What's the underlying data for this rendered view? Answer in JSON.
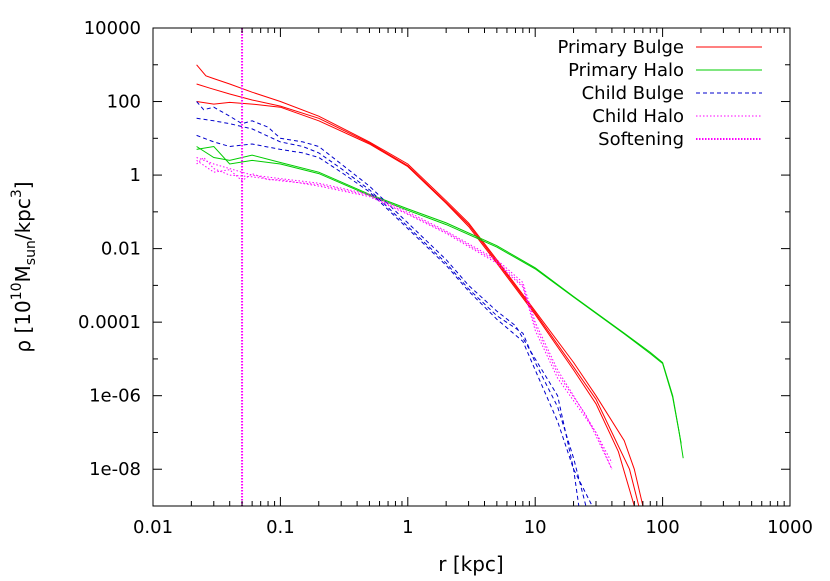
{
  "chart_data": {
    "type": "line",
    "xlabel": "r [kpc]",
    "ylabel": {
      "prefix": "ρ [10",
      "exp10": "10",
      "m": "M",
      "msub": "sun",
      "slash": "/kpc",
      "exp3": "3",
      "suffix": "]"
    },
    "xscale": "log",
    "yscale": "log",
    "xlim": [
      0.01,
      1000
    ],
    "ylim": [
      1e-09,
      10000
    ],
    "xticks": [
      0.01,
      0.1,
      1,
      10,
      100,
      1000
    ],
    "xtick_labels": [
      "0.01",
      "0.1",
      "1",
      "10",
      "100",
      "1000"
    ],
    "yticks": [
      10000,
      100,
      1,
      0.01,
      0.0001,
      1e-06,
      1e-08
    ],
    "ytick_labels": [
      "10000",
      "100",
      "1",
      "0.01",
      "0.0001",
      "1e-06",
      "1e-08"
    ],
    "grid": false,
    "legend_position": "top-right",
    "series": [
      {
        "name": "Primary Bulge",
        "color": "#ff0000",
        "dash": "solid",
        "lines": [
          [
            [
              0.022,
              1000
            ],
            [
              0.026,
              500
            ],
            [
              0.03,
              420
            ],
            [
              0.04,
              300
            ],
            [
              0.06,
              180
            ],
            [
              0.1,
              100
            ],
            [
              0.2,
              40
            ],
            [
              0.5,
              8
            ],
            [
              1,
              2
            ],
            [
              2,
              0.2
            ],
            [
              3,
              0.05
            ],
            [
              5,
              0.005
            ],
            [
              10,
              0.0002
            ],
            [
              20,
              8e-06
            ],
            [
              30,
              1e-06
            ],
            [
              50,
              6e-08
            ],
            [
              60,
              1e-08
            ],
            [
              70,
              1e-09
            ]
          ],
          [
            [
              0.022,
              300
            ],
            [
              0.028,
              230
            ],
            [
              0.04,
              160
            ],
            [
              0.06,
              110
            ],
            [
              0.1,
              75
            ],
            [
              0.2,
              35
            ],
            [
              0.5,
              7.5
            ],
            [
              1,
              1.8
            ],
            [
              2,
              0.18
            ],
            [
              3,
              0.045
            ],
            [
              5,
              0.0045
            ],
            [
              10,
              0.00018
            ],
            [
              20,
              6e-06
            ],
            [
              30,
              8e-07
            ],
            [
              40,
              1e-07
            ],
            [
              55,
              1e-08
            ],
            [
              65,
              1e-09
            ]
          ],
          [
            [
              0.022,
              100
            ],
            [
              0.03,
              85
            ],
            [
              0.04,
              95
            ],
            [
              0.06,
              85
            ],
            [
              0.1,
              70
            ],
            [
              0.2,
              30
            ],
            [
              0.5,
              7
            ],
            [
              1,
              1.7
            ],
            [
              2,
              0.17
            ],
            [
              3,
              0.04
            ],
            [
              5,
              0.004
            ],
            [
              10,
              0.00016
            ],
            [
              20,
              5e-06
            ],
            [
              30,
              6e-07
            ],
            [
              45,
              3e-08
            ],
            [
              60,
              1e-09
            ]
          ]
        ]
      },
      {
        "name": "Primary Halo",
        "color": "#00cc00",
        "dash": "solid",
        "lines": [
          [
            [
              0.022,
              6
            ],
            [
              0.03,
              3
            ],
            [
              0.04,
              2.5
            ],
            [
              0.06,
              3.5
            ],
            [
              0.1,
              2.2
            ],
            [
              0.2,
              1.2
            ],
            [
              0.5,
              0.3
            ],
            [
              1,
              0.12
            ],
            [
              2,
              0.05
            ],
            [
              5,
              0.012
            ],
            [
              10,
              0.003
            ],
            [
              20,
              0.0005
            ],
            [
              50,
              5e-05
            ],
            [
              80,
              1.5e-05
            ],
            [
              100,
              8e-06
            ],
            [
              120,
              1e-06
            ],
            [
              135,
              1e-07
            ],
            [
              145,
              2e-08
            ]
          ],
          [
            [
              0.022,
              5
            ],
            [
              0.03,
              6
            ],
            [
              0.04,
              2
            ],
            [
              0.06,
              2.5
            ],
            [
              0.1,
              2
            ],
            [
              0.2,
              1.1
            ],
            [
              0.5,
              0.28
            ],
            [
              1,
              0.11
            ],
            [
              2,
              0.045
            ],
            [
              5,
              0.011
            ],
            [
              10,
              0.0028
            ],
            [
              20,
              0.00048
            ],
            [
              50,
              4.8e-05
            ],
            [
              80,
              1.4e-05
            ],
            [
              100,
              7.5e-06
            ],
            [
              120,
              9e-07
            ],
            [
              140,
              5e-08
            ]
          ]
        ]
      },
      {
        "name": "Child Bulge",
        "color": "#0000cc",
        "dash": "dashed",
        "lines": [
          [
            [
              0.022,
              100
            ],
            [
              0.025,
              60
            ],
            [
              0.03,
              70
            ],
            [
              0.04,
              40
            ],
            [
              0.05,
              25
            ],
            [
              0.06,
              30
            ],
            [
              0.08,
              20
            ],
            [
              0.1,
              10
            ],
            [
              0.15,
              8
            ],
            [
              0.2,
              6
            ],
            [
              0.3,
              2
            ],
            [
              0.5,
              0.5
            ],
            [
              1,
              0.05
            ],
            [
              2,
              0.005
            ],
            [
              3,
              0.001
            ],
            [
              5,
              0.0002
            ],
            [
              7,
              8e-05
            ],
            [
              10,
              1e-05
            ],
            [
              15,
              1e-06
            ],
            [
              20,
              1e-08
            ],
            [
              22,
              1e-09
            ]
          ],
          [
            [
              0.022,
              35
            ],
            [
              0.03,
              30
            ],
            [
              0.04,
              25
            ],
            [
              0.06,
              18
            ],
            [
              0.1,
              8
            ],
            [
              0.15,
              6
            ],
            [
              0.2,
              4
            ],
            [
              0.3,
              1.5
            ],
            [
              0.5,
              0.4
            ],
            [
              1,
              0.04
            ],
            [
              2,
              0.004
            ],
            [
              3,
              0.0008
            ],
            [
              5,
              0.00015
            ],
            [
              8,
              5e-05
            ],
            [
              10,
              8e-06
            ],
            [
              15,
              5e-07
            ],
            [
              20,
              2e-08
            ],
            [
              25,
              1e-09
            ]
          ],
          [
            [
              0.022,
              12
            ],
            [
              0.03,
              8
            ],
            [
              0.04,
              6
            ],
            [
              0.06,
              7
            ],
            [
              0.1,
              5
            ],
            [
              0.15,
              4
            ],
            [
              0.2,
              3
            ],
            [
              0.3,
              1.2
            ],
            [
              0.5,
              0.35
            ],
            [
              1,
              0.035
            ],
            [
              2,
              0.0035
            ],
            [
              3,
              0.0007
            ],
            [
              5,
              0.00012
            ],
            [
              8,
              3e-05
            ],
            [
              10,
              5e-06
            ],
            [
              15,
              2e-07
            ],
            [
              20,
              1e-08
            ],
            [
              28,
              1e-09
            ]
          ]
        ]
      },
      {
        "name": "Child Halo",
        "color": "#ff00ff",
        "dash": "dotted",
        "lines": [
          [
            [
              0.022,
              3
            ],
            [
              0.03,
              2
            ],
            [
              0.04,
              1.5
            ],
            [
              0.06,
              1
            ],
            [
              0.1,
              0.8
            ],
            [
              0.2,
              0.6
            ],
            [
              0.5,
              0.3
            ],
            [
              1,
              0.1
            ],
            [
              2,
              0.03
            ],
            [
              5,
              0.005
            ],
            [
              8,
              0.0012
            ],
            [
              10,
              0.0001
            ],
            [
              15,
              5e-06
            ],
            [
              20,
              1e-06
            ],
            [
              30,
              1e-07
            ],
            [
              40,
              1e-08
            ]
          ],
          [
            [
              0.022,
              2
            ],
            [
              0.025,
              3
            ],
            [
              0.03,
              1.5
            ],
            [
              0.04,
              1
            ],
            [
              0.06,
              0.9
            ],
            [
              0.1,
              0.7
            ],
            [
              0.2,
              0.55
            ],
            [
              0.5,
              0.28
            ],
            [
              1,
              0.09
            ],
            [
              2,
              0.028
            ],
            [
              5,
              0.0045
            ],
            [
              8,
              0.001
            ],
            [
              10,
              8e-05
            ],
            [
              15,
              4e-06
            ],
            [
              25,
              3e-07
            ],
            [
              40,
              1e-08
            ]
          ],
          [
            [
              0.022,
              2.5
            ],
            [
              0.03,
              1.2
            ],
            [
              0.04,
              1.4
            ],
            [
              0.05,
              0.7
            ],
            [
              0.06,
              1.1
            ],
            [
              0.08,
              0.75
            ],
            [
              0.1,
              0.75
            ],
            [
              0.2,
              0.5
            ],
            [
              0.5,
              0.26
            ],
            [
              1,
              0.085
            ],
            [
              2,
              0.026
            ],
            [
              5,
              0.004
            ],
            [
              8,
              0.0009
            ],
            [
              10,
              6e-05
            ],
            [
              15,
              3e-06
            ],
            [
              30,
              1e-07
            ],
            [
              40,
              1.5e-08
            ]
          ]
        ]
      },
      {
        "name": "Softening",
        "color": "#ff00ff",
        "dash": "dotted",
        "vertical_x": 0.05
      }
    ]
  }
}
